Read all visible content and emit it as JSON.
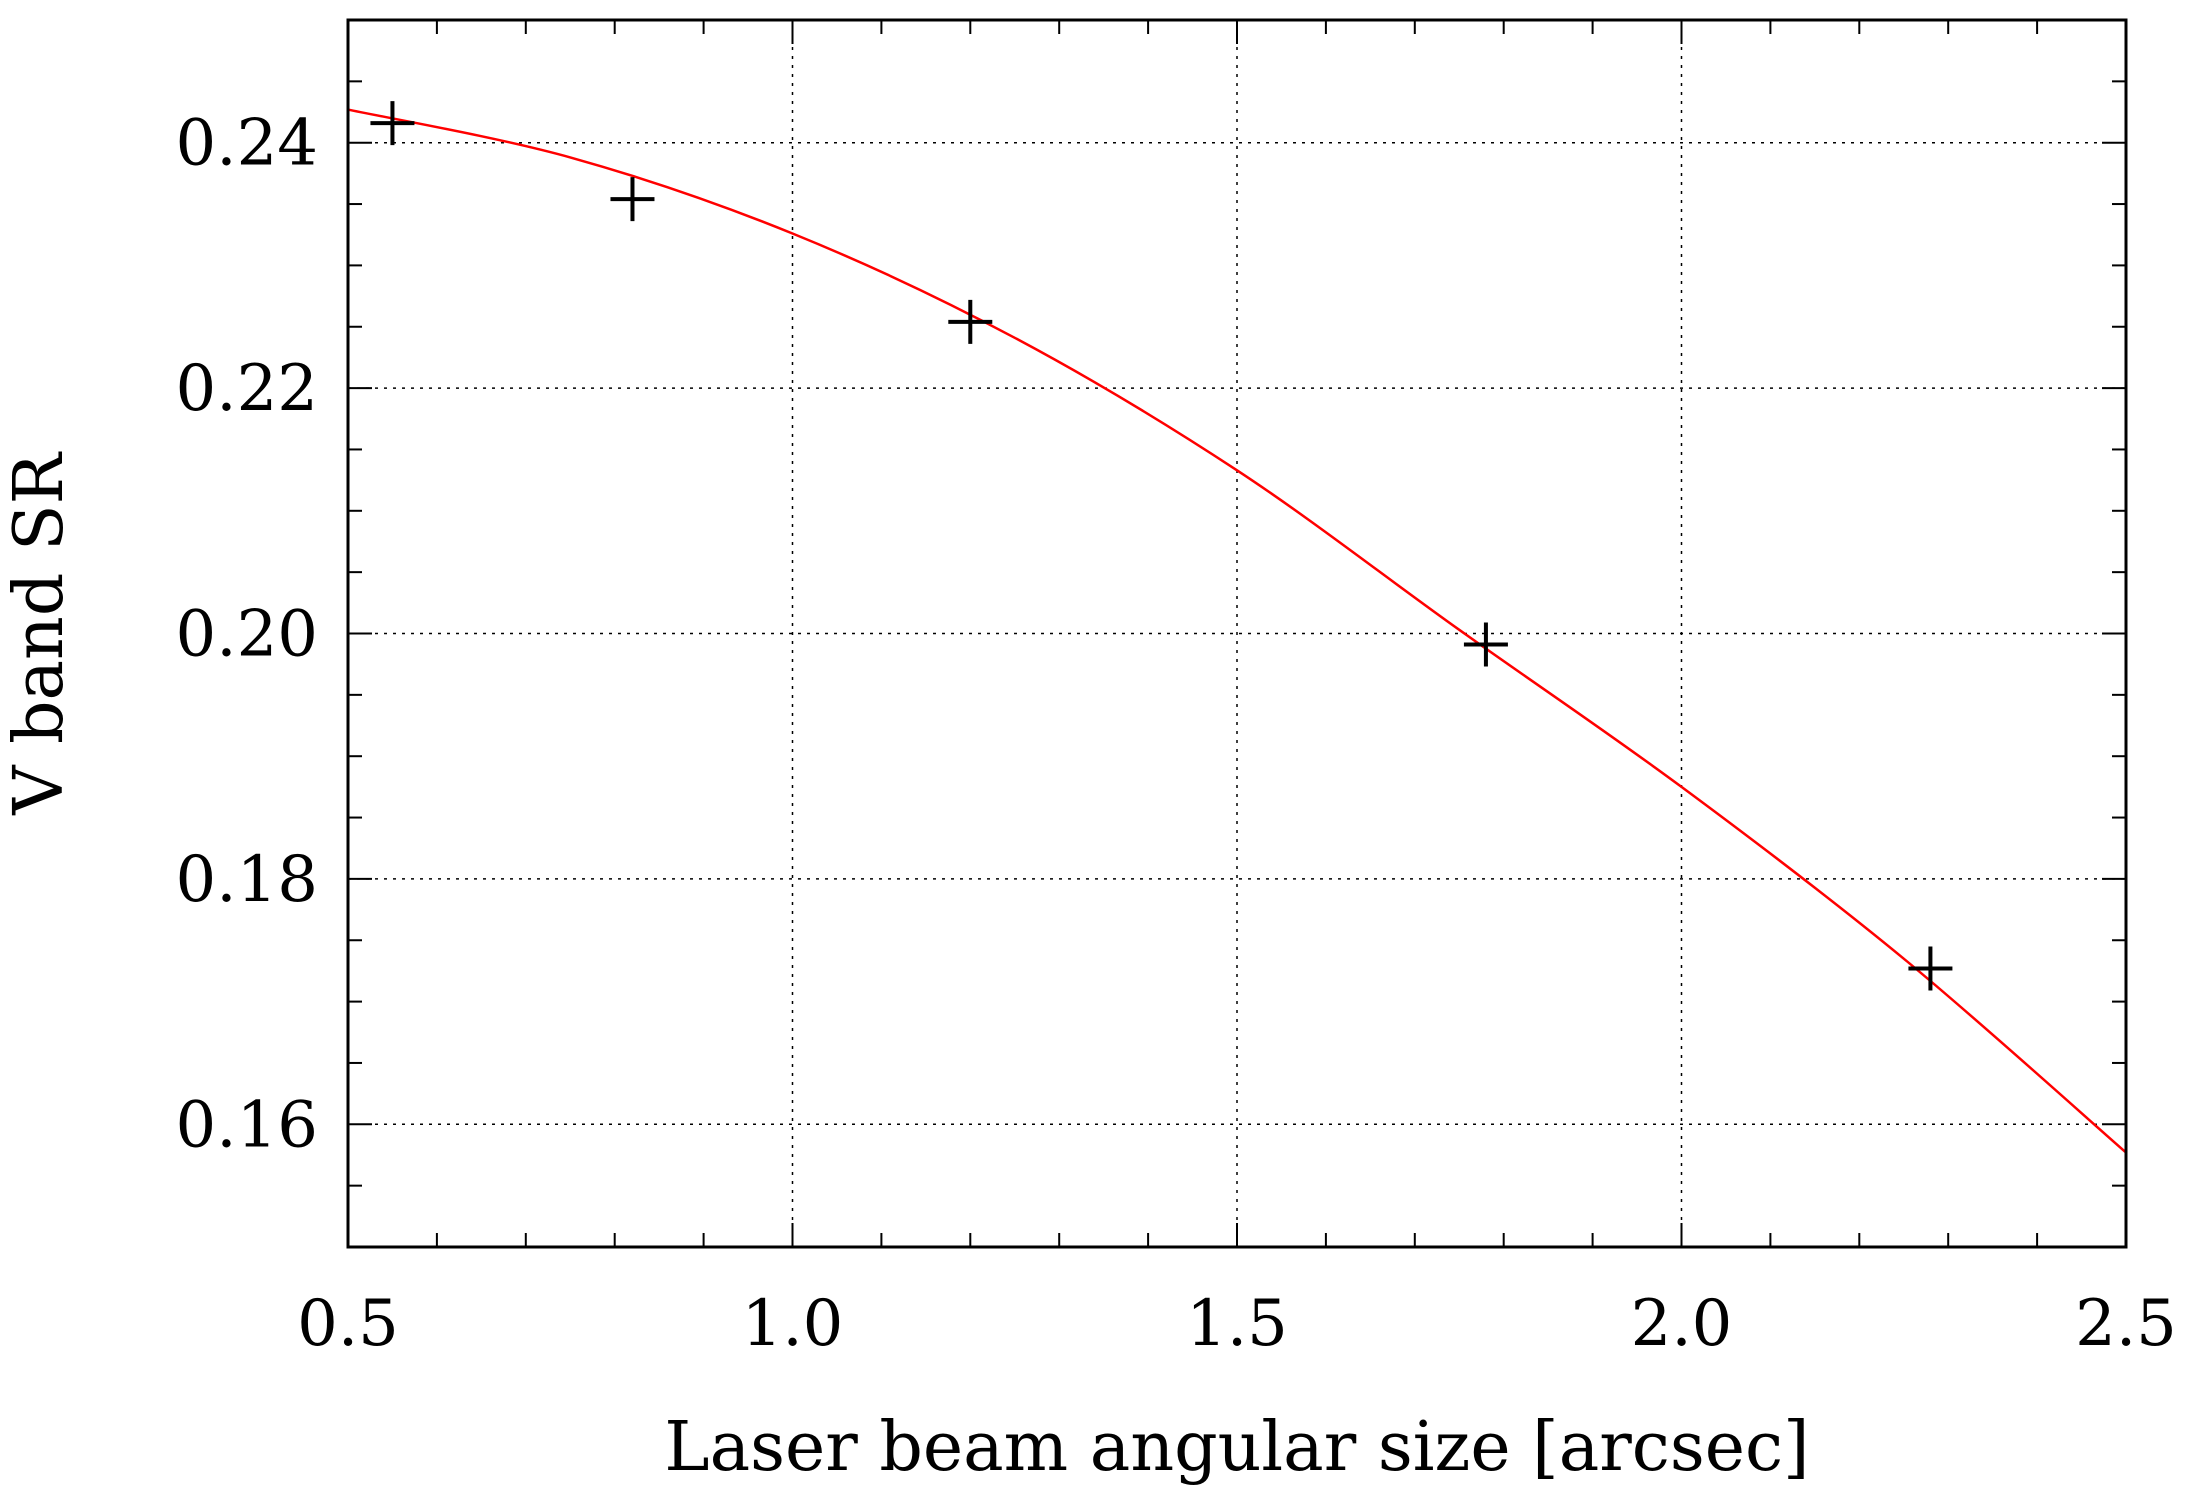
{
  "chart_data": {
    "type": "scatter",
    "title": "",
    "xlabel": "Laser beam angular size [arcsec]",
    "ylabel": "V band SR",
    "xlim": [
      0.5,
      2.5
    ],
    "ylim": [
      0.15,
      0.25
    ],
    "x_ticks": [
      "0.5",
      "1.0",
      "1.5",
      "2.0",
      "2.5"
    ],
    "y_ticks": [
      "0.16",
      "0.18",
      "0.20",
      "0.22",
      "0.24"
    ],
    "grid": true,
    "series": [
      {
        "kind": "points",
        "marker": "plus",
        "color": "#000000",
        "points": [
          {
            "x": 0.55,
            "y": 0.2416
          },
          {
            "x": 0.82,
            "y": 0.2354
          },
          {
            "x": 1.2,
            "y": 0.2254
          },
          {
            "x": 1.78,
            "y": 0.1991
          },
          {
            "x": 2.28,
            "y": 0.1727
          }
        ]
      },
      {
        "kind": "fit-line",
        "color": "#ff0000",
        "points": [
          {
            "x": 0.5,
            "y": 0.2427
          },
          {
            "x": 0.75,
            "y": 0.2388
          },
          {
            "x": 1.0,
            "y": 0.2326
          },
          {
            "x": 1.25,
            "y": 0.2241
          },
          {
            "x": 1.5,
            "y": 0.2133
          },
          {
            "x": 1.75,
            "y": 0.2003
          },
          {
            "x": 2.0,
            "y": 0.1875
          },
          {
            "x": 2.25,
            "y": 0.1735
          },
          {
            "x": 2.5,
            "y": 0.1577
          }
        ]
      }
    ]
  }
}
